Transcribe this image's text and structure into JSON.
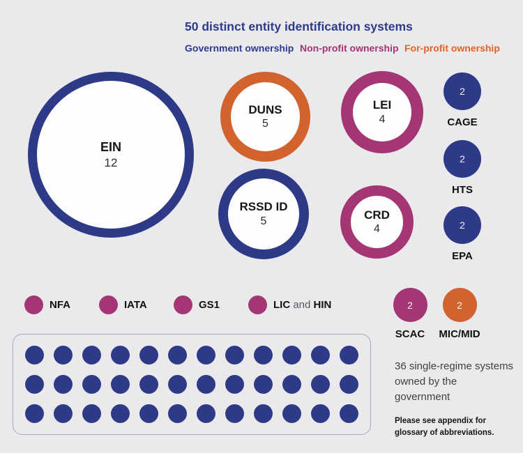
{
  "title": "50 distinct entity identification systems",
  "legend": {
    "government": "Government ownership",
    "nonprofit": "Non-profit ownership",
    "forprofit": "For-profit ownership"
  },
  "colors": {
    "government": "#2e3a87",
    "nonprofit": "#a33673",
    "forprofit": "#d2622e",
    "background": "#eaeaec",
    "title_text": "#2e3a8c"
  },
  "bubbles": {
    "ein": {
      "label": "EIN",
      "value": "12"
    },
    "duns": {
      "label": "DUNS",
      "value": "5"
    },
    "lei": {
      "label": "LEI",
      "value": "4"
    },
    "rssd": {
      "label": "RSSD ID",
      "value": "5"
    },
    "crd": {
      "label": "CRD",
      "value": "4"
    }
  },
  "badges": {
    "cage": {
      "label": "CAGE",
      "value": "2"
    },
    "hts": {
      "label": "HTS",
      "value": "2"
    },
    "epa": {
      "label": "EPA",
      "value": "2"
    },
    "scac": {
      "label": "SCAC",
      "value": "2"
    },
    "micmid": {
      "label": "MIC/MID",
      "value": "2"
    }
  },
  "dot_items": {
    "nfa": "NFA",
    "iata": "IATA",
    "gs1": "GS1",
    "lic_hin": {
      "first": "LIC",
      "conj": "and",
      "second": "HIN"
    }
  },
  "grid": {
    "count": 36,
    "rows": 3,
    "cols": 12
  },
  "caption": "36 single-regime systems owned by the government",
  "footnote": "Please see appendix for glossary of abbreviations.",
  "chart_data": {
    "type": "bubble",
    "title": "50 distinct entity identification systems",
    "legend_entries": [
      "Government ownership",
      "Non-profit ownership",
      "For-profit ownership"
    ],
    "legend_position": "top",
    "series": [
      {
        "name": "EIN",
        "value": 12,
        "ownership": "government"
      },
      {
        "name": "DUNS",
        "value": 5,
        "ownership": "for-profit"
      },
      {
        "name": "RSSD ID",
        "value": 5,
        "ownership": "government"
      },
      {
        "name": "LEI",
        "value": 4,
        "ownership": "non-profit"
      },
      {
        "name": "CRD",
        "value": 4,
        "ownership": "non-profit"
      },
      {
        "name": "CAGE",
        "value": 2,
        "ownership": "government"
      },
      {
        "name": "HTS",
        "value": 2,
        "ownership": "government"
      },
      {
        "name": "EPA",
        "value": 2,
        "ownership": "government"
      },
      {
        "name": "SCAC",
        "value": 2,
        "ownership": "non-profit"
      },
      {
        "name": "MIC/MID",
        "value": 2,
        "ownership": "for-profit"
      },
      {
        "name": "NFA",
        "value": 1,
        "ownership": "non-profit"
      },
      {
        "name": "IATA",
        "value": 1,
        "ownership": "non-profit"
      },
      {
        "name": "GS1",
        "value": 1,
        "ownership": "non-profit"
      },
      {
        "name": "LIC and HIN",
        "value": 1,
        "ownership": "non-profit"
      },
      {
        "name": "single-regime government systems",
        "value": 36,
        "ownership": "government"
      }
    ],
    "annotation": "36 single-regime systems owned by the government",
    "footnote": "Please see appendix for glossary of abbreviations."
  }
}
